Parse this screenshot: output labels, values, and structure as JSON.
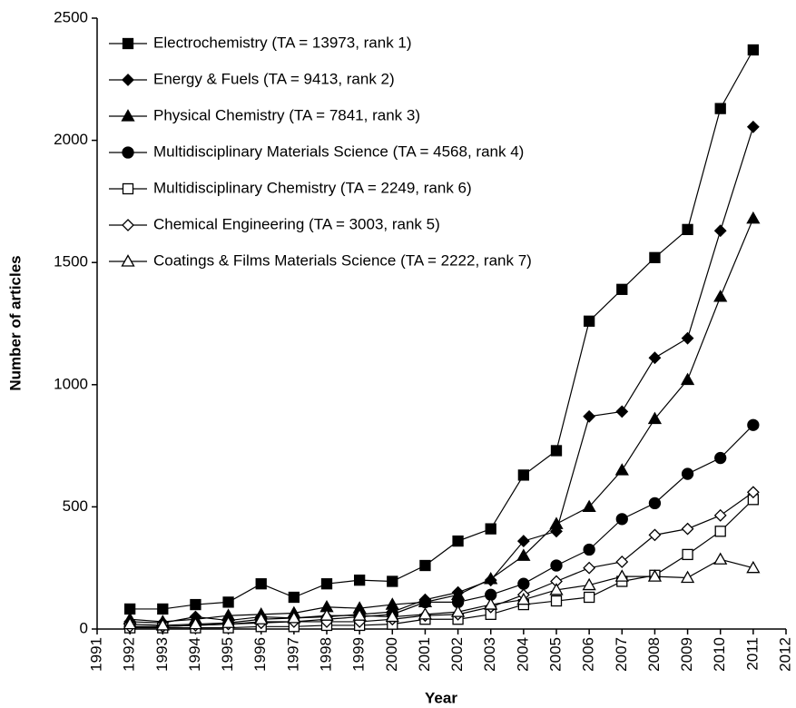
{
  "chart_data": {
    "type": "line",
    "xlabel": "Year",
    "ylabel": "Number of articles",
    "x": [
      1992,
      1993,
      1994,
      1995,
      1996,
      1997,
      1998,
      1999,
      2000,
      2001,
      2002,
      2003,
      2004,
      2005,
      2006,
      2007,
      2008,
      2009,
      2010,
      2011
    ],
    "xlim": [
      1991,
      2012
    ],
    "xticks": [
      1991,
      1992,
      1993,
      1994,
      1995,
      1996,
      1997,
      1998,
      1999,
      2000,
      2001,
      2002,
      2003,
      2004,
      2005,
      2006,
      2007,
      2008,
      2009,
      2010,
      2011,
      2012
    ],
    "ylim": [
      0,
      2500
    ],
    "yticks": [
      0,
      500,
      1000,
      1500,
      2000,
      2500
    ],
    "legend": "upper left",
    "series": [
      {
        "name": "Electrochemistry (TA = 13973, rank 1)",
        "color": "#000000",
        "marker": "square",
        "fill": "#000000",
        "values": [
          82,
          82,
          100,
          110,
          185,
          130,
          185,
          200,
          195,
          260,
          360,
          410,
          630,
          730,
          1260,
          1390,
          1520,
          1635,
          2130,
          2370
        ]
      },
      {
        "name": "Energy & Fuels (TA = 9413, rank 2)",
        "color": "#000000",
        "marker": "diamond",
        "fill": "#000000",
        "values": [
          30,
          25,
          50,
          35,
          50,
          45,
          50,
          60,
          70,
          120,
          150,
          200,
          360,
          400,
          870,
          890,
          1110,
          1190,
          1630,
          2055
        ]
      },
      {
        "name": "Physical Chemistry (TA = 7841, rank 3)",
        "color": "#000000",
        "marker": "triangle",
        "fill": "#000000",
        "values": [
          40,
          30,
          40,
          55,
          60,
          65,
          90,
          85,
          100,
          110,
          140,
          205,
          300,
          430,
          500,
          650,
          860,
          1020,
          1360,
          1680
        ]
      },
      {
        "name": "Multidisciplinary Materials Science (TA = 4568, rank 4)",
        "color": "#000000",
        "marker": "circle",
        "fill": "#000000",
        "values": [
          10,
          10,
          15,
          20,
          30,
          30,
          40,
          50,
          60,
          110,
          110,
          140,
          185,
          260,
          325,
          450,
          515,
          635,
          700,
          835
        ]
      },
      {
        "name": "Multidisciplinary Chemistry (TA = 2249, rank 6)",
        "color": "#000000",
        "marker": "square",
        "fill": "#ffffff",
        "values": [
          5,
          5,
          5,
          5,
          10,
          10,
          15,
          15,
          20,
          40,
          40,
          60,
          100,
          115,
          130,
          195,
          220,
          305,
          400,
          530
        ]
      },
      {
        "name": "Chemical Engineering (TA = 3003, rank 5)",
        "color": "#000000",
        "marker": "diamond",
        "fill": "#ffffff",
        "values": [
          10,
          10,
          15,
          20,
          25,
          30,
          30,
          30,
          40,
          55,
          60,
          90,
          140,
          195,
          250,
          275,
          385,
          410,
          465,
          560
        ]
      },
      {
        "name": "Coatings & Films Materials Science (TA = 2222, rank 7)",
        "color": "#000000",
        "marker": "triangle",
        "fill": "#ffffff",
        "values": [
          20,
          15,
          20,
          25,
          40,
          45,
          55,
          55,
          50,
          60,
          70,
          100,
          120,
          160,
          180,
          215,
          215,
          210,
          285,
          250
        ]
      }
    ]
  }
}
